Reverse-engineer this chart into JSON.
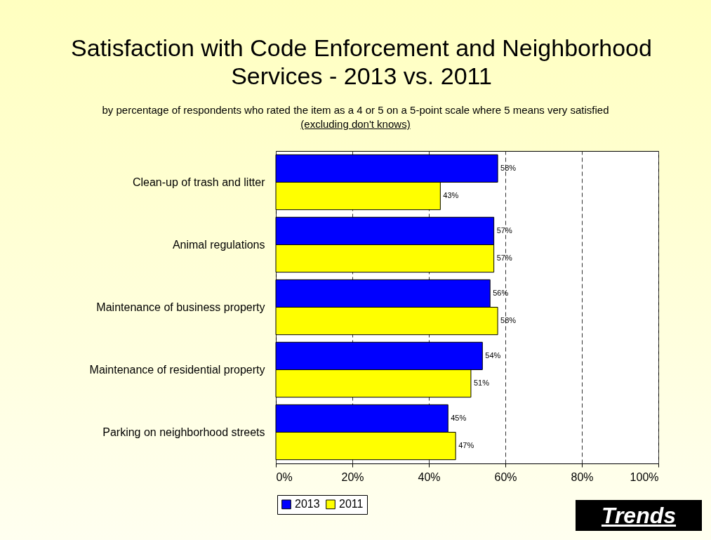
{
  "chart_data": {
    "type": "bar",
    "orientation": "horizontal",
    "title": "Satisfaction with Code Enforcement and Neighborhood Services - 2013 vs. 2011",
    "subtitle": "by percentage of respondents who rated the item as a 4 or 5 on a 5-point scale where 5 means very satisfied",
    "annotations": [
      "(excluding don't knows)",
      "Trends"
    ],
    "categories": [
      "Clean-up of trash and litter",
      "Animal regulations",
      "Maintenance of business property",
      "Maintenance of residential property",
      "Parking on neighborhood streets"
    ],
    "series": [
      {
        "name": "2013",
        "color": "#0000ff",
        "values": [
          58,
          57,
          56,
          54,
          45
        ],
        "value_labels": [
          "58%",
          "57%",
          "56%",
          "54%",
          "45%"
        ]
      },
      {
        "name": "2011",
        "color": "#ffff00",
        "values": [
          43,
          57,
          58,
          51,
          47
        ],
        "value_labels": [
          "43%",
          "57%",
          "58%",
          "51%",
          "47%"
        ]
      }
    ],
    "xlim": [
      0,
      100
    ],
    "xticks": [
      {
        "value": 0,
        "label": "0%"
      },
      {
        "value": 20,
        "label": "20%"
      },
      {
        "value": 40,
        "label": "40%"
      },
      {
        "value": 60,
        "label": "60%"
      },
      {
        "value": 80,
        "label": "80%"
      },
      {
        "value": 100,
        "label": "100%"
      }
    ],
    "grid": "x",
    "legend": "bottom left"
  }
}
